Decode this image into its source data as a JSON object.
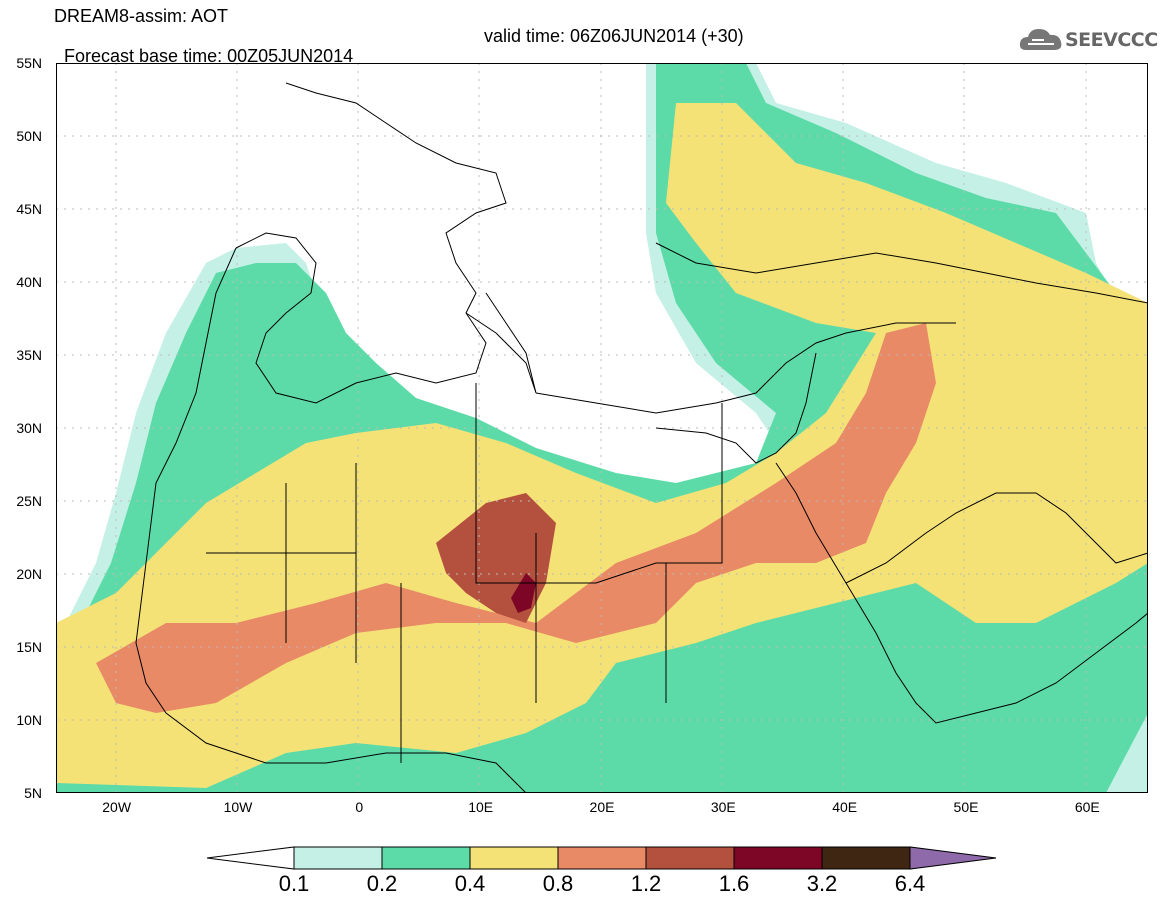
{
  "header": {
    "title_line1": "DREAM8-assim: AOT",
    "base_time": "Forecast base time: 00Z05JUN2014",
    "valid_time": "valid time: 06Z06JUN2014 (+30)",
    "logo_text": "SEEVCCC",
    "logo_icon": "cloud-icon"
  },
  "axes": {
    "lat_labels": [
      "55N",
      "50N",
      "45N",
      "40N",
      "35N",
      "30N",
      "25N",
      "20N",
      "15N",
      "10N",
      "5N"
    ],
    "lon_labels": [
      "20W",
      "10W",
      "0",
      "10E",
      "20E",
      "30E",
      "40E",
      "50E",
      "60E"
    ],
    "lat_range": [
      5,
      55
    ],
    "lon_range": [
      -25,
      65
    ],
    "grid": "dotted"
  },
  "colorbar": {
    "labels": [
      "0.1",
      "0.2",
      "0.4",
      "0.8",
      "1.2",
      "1.6",
      "3.2",
      "6.4"
    ],
    "colors": [
      "#ffffff",
      "#c4f0e6",
      "#5cdba8",
      "#f5e277",
      "#e88a66",
      "#b4513e",
      "#7d0626",
      "#3e2612",
      "#8e6aaa"
    ]
  },
  "field": {
    "variable": "AOT",
    "description_levels": [
      "0.1",
      "0.2",
      "0.4",
      "0.8",
      "1.2",
      "1.6"
    ]
  }
}
